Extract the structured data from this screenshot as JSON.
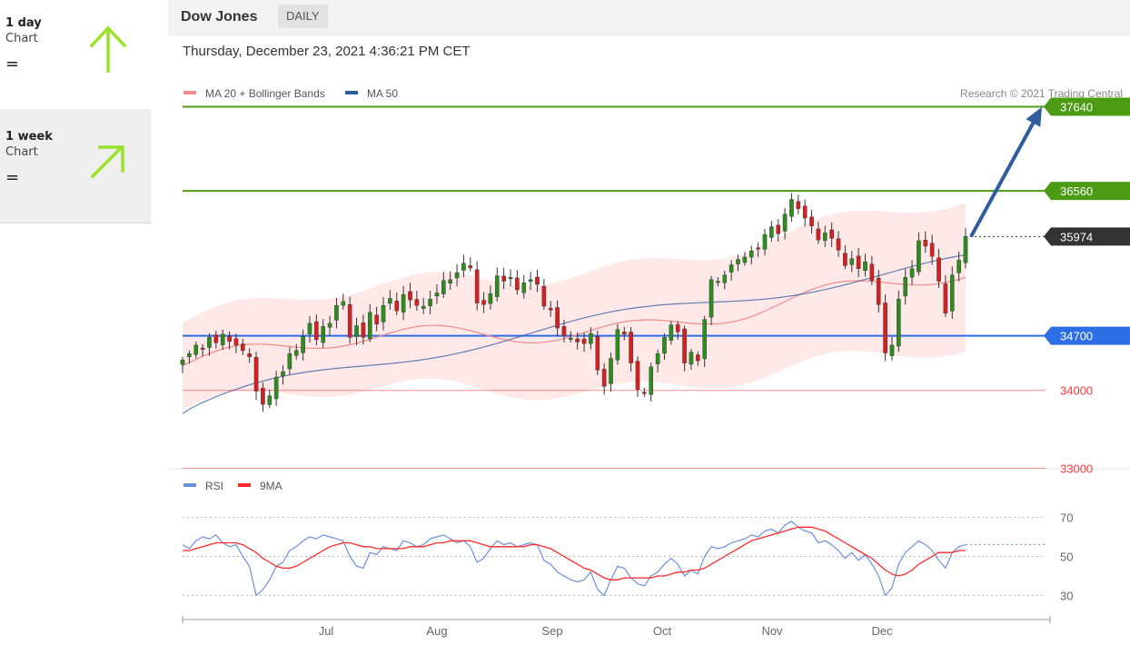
{
  "sidebar": {
    "items": [
      {
        "period": "1 day",
        "label": "Chart",
        "symbol": "=",
        "arrow": "up-arrow-icon"
      },
      {
        "period": "1 week",
        "label": "Chart",
        "symbol": "=",
        "arrow": "up-right-arrow-icon"
      }
    ],
    "arrow_color": "#9be22a"
  },
  "header": {
    "instrument": "Dow Jones",
    "interval": "DAILY"
  },
  "timestamp": "Thursday, December 23, 2021 4:36:21 PM CET",
  "legend": {
    "ma20": "MA 20 + Bollinger Bands",
    "ma50": "MA 50",
    "ma20_color": "#f28b8b",
    "ma50_color": "#2e5c9e"
  },
  "credit": "Research © 2021 Trading Central",
  "chart_data": [
    {
      "type": "candlestick",
      "title": "Dow Jones",
      "ylim": [
        32900,
        38100
      ],
      "x_ticks": [
        "Jul",
        "Aug",
        "Sep",
        "Oct",
        "Nov",
        "Dec"
      ],
      "levels": [
        {
          "value": 37640,
          "label": "37640",
          "kind": "resistance",
          "color": "#4c9b14"
        },
        {
          "value": 36560,
          "label": "36560",
          "kind": "resistance",
          "color": "#4c9b14"
        },
        {
          "value": 35974,
          "label": "35974",
          "kind": "last-price",
          "color": "#333333"
        },
        {
          "value": 34700,
          "label": "34700",
          "kind": "pivot",
          "color": "#2d6ee6"
        },
        {
          "value": 34000,
          "label": "34000",
          "kind": "support",
          "color": "#ff3a3a"
        },
        {
          "value": 33000,
          "label": "33000",
          "kind": "support",
          "color": "#ff3a3a"
        }
      ],
      "forecast": {
        "from": 35974,
        "to": 37640,
        "color": "#2e5c9e"
      },
      "closes": [
        34390,
        34470,
        34580,
        34530,
        34680,
        34610,
        34720,
        34630,
        34580,
        34510,
        34430,
        33990,
        33820,
        33930,
        34170,
        34240,
        34470,
        34510,
        34690,
        34860,
        34650,
        34820,
        34860,
        35090,
        35140,
        34680,
        34830,
        34680,
        35000,
        34850,
        35090,
        35180,
        35020,
        35230,
        35160,
        35090,
        35080,
        35170,
        35250,
        35410,
        35420,
        35510,
        35630,
        35570,
        35120,
        35100,
        35240,
        35470,
        35400,
        35450,
        35290,
        35380,
        35420,
        35360,
        35080,
        35030,
        34800,
        34700,
        34670,
        34620,
        34600,
        34730,
        34260,
        34050,
        34410,
        34780,
        34720,
        34350,
        34010,
        33960,
        34300,
        34470,
        34680,
        34840,
        34750,
        34350,
        34490,
        34380,
        34910,
        35420,
        35400,
        35480,
        35610,
        35680,
        35710,
        35790,
        35820,
        36000,
        36100,
        36010,
        36260,
        36450,
        36330,
        36210,
        36110,
        35930,
        36020,
        35950,
        35800,
        35600,
        35690,
        35560,
        35650,
        35410,
        35100,
        34480,
        34580,
        35170,
        35450,
        35560,
        35920,
        35850,
        35720,
        35400,
        34990,
        35480,
        35670,
        35974
      ],
      "ma50_start": 33700,
      "ma50_end": 35650,
      "bands": {
        "upper_start": 34870,
        "upper_end": 36330,
        "lower_start": 33760,
        "lower_end": 34420
      }
    },
    {
      "type": "line",
      "title": "RSI",
      "series": [
        {
          "name": "RSI",
          "color": "#6d8fe0"
        },
        {
          "name": "9MA",
          "color": "#ff2a2a"
        }
      ],
      "y_ticks": [
        70,
        50,
        30
      ],
      "ylim": [
        20,
        80
      ],
      "rsi": [
        56,
        54,
        58,
        60,
        59,
        61,
        57,
        55,
        56,
        50,
        45,
        30,
        33,
        38,
        45,
        47,
        53,
        55,
        58,
        60,
        59,
        61,
        60,
        59,
        58,
        50,
        45,
        44,
        52,
        51,
        55,
        54,
        53,
        58,
        57,
        55,
        56,
        59,
        60,
        61,
        59,
        57,
        58,
        55,
        47,
        49,
        54,
        58,
        56,
        57,
        55,
        56,
        57,
        56,
        48,
        46,
        42,
        40,
        38,
        37,
        38,
        42,
        33,
        30,
        38,
        45,
        44,
        39,
        36,
        35,
        40,
        42,
        46,
        49,
        46,
        40,
        43,
        41,
        50,
        55,
        54,
        55,
        57,
        58,
        59,
        61,
        60,
        63,
        64,
        62,
        66,
        68,
        65,
        63,
        62,
        57,
        58,
        56,
        53,
        49,
        52,
        48,
        51,
        46,
        40,
        30,
        34,
        46,
        52,
        55,
        58,
        56,
        53,
        48,
        44,
        52,
        55,
        56
      ],
      "ma9": [
        53,
        53,
        54,
        55,
        56,
        57,
        57,
        57,
        57,
        56,
        54,
        52,
        49,
        47,
        45,
        44,
        44,
        45,
        47,
        49,
        51,
        53,
        55,
        56,
        57,
        57,
        56,
        55,
        55,
        54,
        54,
        54,
        54,
        54,
        55,
        55,
        55,
        56,
        57,
        57,
        58,
        58,
        58,
        58,
        57,
        56,
        55,
        55,
        55,
        55,
        55,
        55,
        56,
        56,
        55,
        54,
        52,
        50,
        48,
        46,
        44,
        43,
        41,
        39,
        38,
        38,
        39,
        39,
        39,
        39,
        39,
        40,
        40,
        41,
        42,
        42,
        43,
        43,
        44,
        46,
        48,
        50,
        52,
        54,
        56,
        58,
        59,
        60,
        61,
        62,
        63,
        64,
        65,
        65,
        65,
        64,
        63,
        61,
        59,
        57,
        55,
        53,
        51,
        49,
        46,
        43,
        41,
        40,
        41,
        43,
        46,
        48,
        50,
        52,
        52,
        52,
        53,
        53
      ]
    }
  ]
}
